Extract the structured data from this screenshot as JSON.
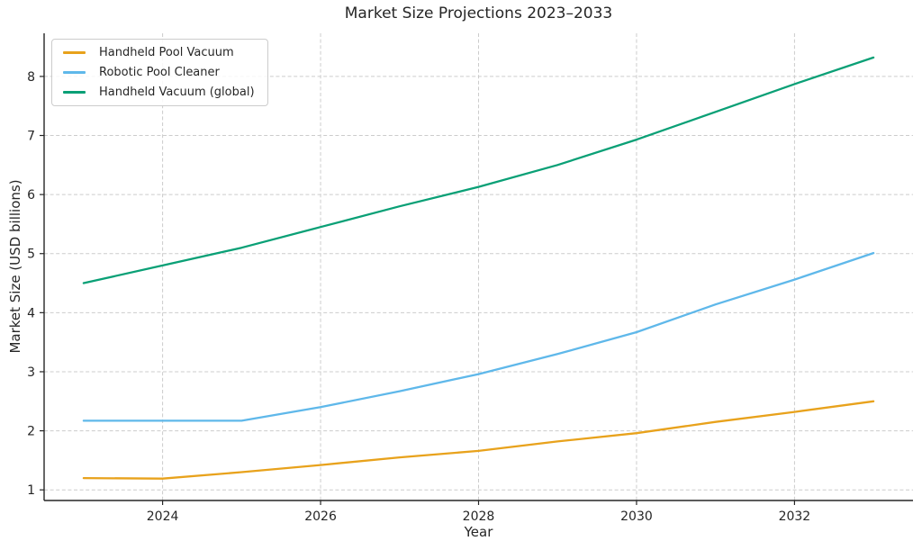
{
  "figure": {
    "background": "#ffffff",
    "text_color": "#262626",
    "grid_color": "#cccccc",
    "axis_color": "#262626"
  },
  "chart_data": {
    "type": "line",
    "title": "Market Size Projections 2023–2033",
    "xlabel": "Year",
    "ylabel": "Market Size (USD billions)",
    "x": [
      2023,
      2024,
      2025,
      2026,
      2027,
      2028,
      2029,
      2030,
      2031,
      2032,
      2033
    ],
    "series": [
      {
        "name": "Handheld Pool Vacuum",
        "color": "#E8A21C",
        "values": [
          1.2,
          1.19,
          1.3,
          1.42,
          1.55,
          1.66,
          1.82,
          1.96,
          2.15,
          2.32,
          2.5
        ]
      },
      {
        "name": "Robotic Pool Cleaner",
        "color": "#5FB8EA",
        "values": [
          2.17,
          2.17,
          2.17,
          2.4,
          2.67,
          2.96,
          3.3,
          3.67,
          4.14,
          4.56,
          5.01
        ]
      },
      {
        "name": "Handheld Vacuum (global)",
        "color": "#0AA076",
        "values": [
          4.5,
          4.8,
          5.1,
          5.45,
          5.8,
          6.13,
          6.5,
          6.93,
          7.4,
          7.87,
          8.32
        ]
      }
    ],
    "xlim": [
      2022.5,
      2033.5
    ],
    "ylim": [
      0.82,
      8.73
    ],
    "xticks": [
      2024,
      2026,
      2028,
      2030,
      2032
    ],
    "yticks": [
      1,
      2,
      3,
      4,
      5,
      6,
      7,
      8
    ],
    "grid": "dashed",
    "legend_position": "upper-left"
  }
}
